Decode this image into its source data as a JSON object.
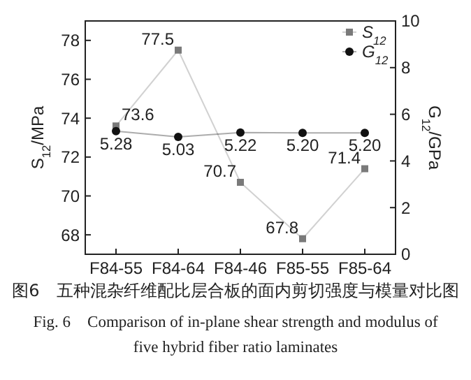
{
  "chart_data": {
    "type": "line",
    "categories": [
      "F84-55",
      "F84-64",
      "F84-46",
      "F85-55",
      "F85-64"
    ],
    "series": [
      {
        "name": "S$_{12}$",
        "color": "#7a7a7a",
        "marker": "square",
        "values": [
          73.6,
          77.5,
          70.7,
          67.8,
          71.4
        ]
      },
      {
        "name": "G$_{12}$",
        "color": "#111111",
        "marker": "circle",
        "axis": "y2",
        "values": [
          5.28,
          5.03,
          5.22,
          5.2,
          5.2
        ],
        "value_labels": [
          "5.28",
          "5.03",
          "5.22",
          "5.20",
          "5.20"
        ]
      }
    ],
    "ylabel": "S$_{12}$/MPa",
    "y2label": "G$_{12}$/GPa",
    "ylim": [
      67,
      79
    ],
    "yticks": [
      68,
      70,
      72,
      74,
      76,
      78
    ],
    "y2lim": [
      0,
      10
    ],
    "y2ticks": [
      0,
      2,
      4,
      6,
      8,
      10
    ],
    "data_labels": true,
    "legend": "top right",
    "grid": false,
    "annotations": [
      "图6　五种混杂纤维配比层合板的面内剪切强度与模量对比图",
      "Fig. 6　Comparison of in-plane shear strength and modulus of five hybrid fiber ratio laminates"
    ]
  }
}
